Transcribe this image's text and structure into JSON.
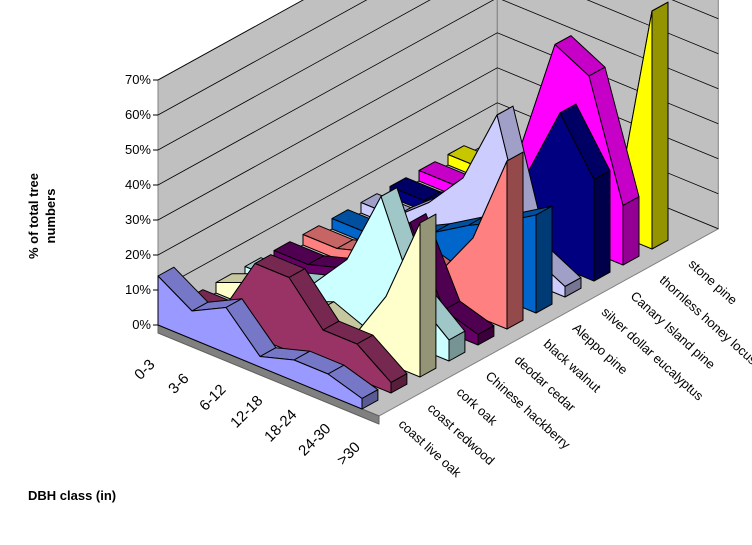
{
  "chart_data": {
    "type": "area",
    "view": "3d",
    "ylabel": "% of total tree numbers",
    "xlabel": "DBH class (in)",
    "ylim": [
      0,
      70
    ],
    "yticks": [
      "0%",
      "10%",
      "20%",
      "30%",
      "40%",
      "50%",
      "60%",
      "70%"
    ],
    "categories": [
      "0-3",
      "3-6",
      "6-12",
      "12-18",
      "18-24",
      "24-30",
      ">30"
    ],
    "series": [
      {
        "name": "coast live oak",
        "color": "#9999ff",
        "values": [
          14,
          8,
          13,
          3,
          6,
          6,
          3
        ]
      },
      {
        "name": "coast redwood",
        "color": "#993366",
        "values": [
          3,
          3,
          21,
          21,
          10,
          10,
          3
        ]
      },
      {
        "name": "cork oak",
        "color": "#ffffcc",
        "values": [
          3,
          7,
          3,
          7,
          3,
          19,
          44
        ]
      },
      {
        "name": "Chinese hackberry",
        "color": "#ccffff",
        "values": [
          3,
          3,
          6,
          17,
          39,
          14,
          6
        ]
      },
      {
        "name": "deodar cedar",
        "color": "#660066",
        "values": [
          3,
          3,
          6,
          17,
          27,
          6,
          3
        ]
      },
      {
        "name": "black walnut",
        "color": "#ff8080",
        "values": [
          3,
          3,
          6,
          11,
          8,
          22,
          48
        ]
      },
      {
        "name": "Aleppo pine",
        "color": "#0066cc",
        "values": [
          3,
          3,
          6,
          11,
          17,
          22,
          28
        ]
      },
      {
        "name": "silver dollar eucalyptus",
        "color": "#ccccff",
        "values": [
          3,
          3,
          11,
          22,
          44,
          8,
          3
        ]
      },
      {
        "name": "Canary Island pine",
        "color": "#000080",
        "values": [
          3,
          3,
          6,
          11,
          22,
          44,
          29
        ]
      },
      {
        "name": "thornless honey locust",
        "color": "#ff00ff",
        "values": [
          3,
          3,
          6,
          22,
          55,
          50,
          17
        ]
      },
      {
        "name": "stone pine",
        "color": "#ffff00",
        "values": [
          3,
          3,
          3,
          6,
          6,
          11,
          68
        ]
      }
    ]
  }
}
